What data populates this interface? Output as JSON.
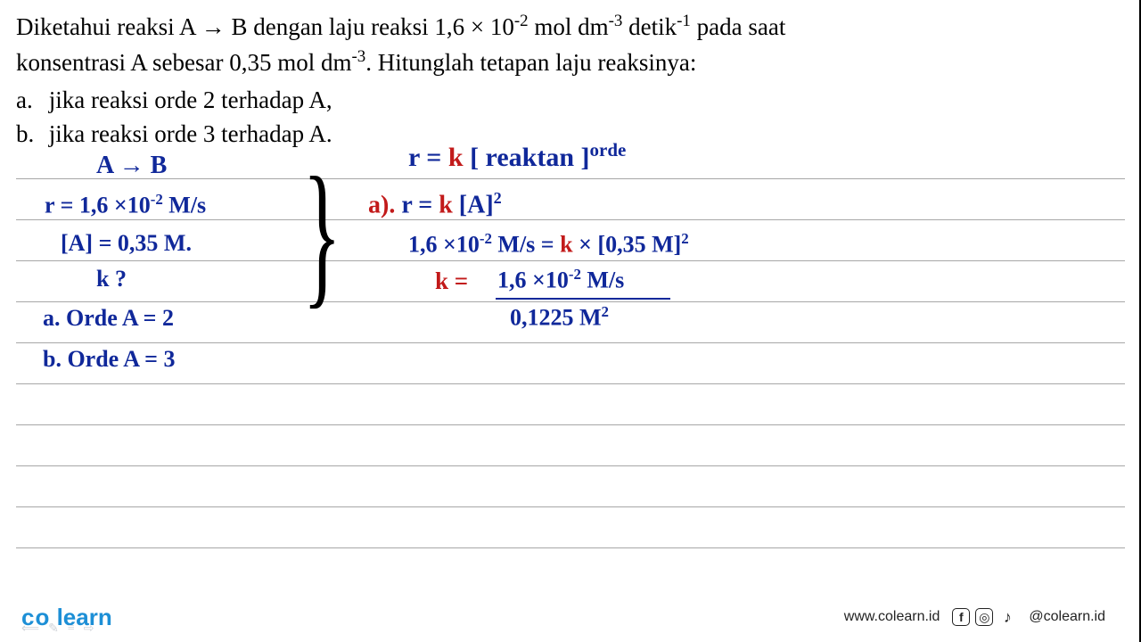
{
  "problem": {
    "line1_pre": "Diketahui reaksi A → B dengan laju reaksi 1,6 × 10",
    "line1_exp1": "-2",
    "line1_mid1": " mol dm",
    "line1_exp2": "-3",
    "line1_mid2": " detik",
    "line1_exp3": "-1",
    "line1_post": " pada saat",
    "line2_pre": "konsentrasi A sebesar 0,35 mol dm",
    "line2_exp": "-3",
    "line2_post": ". Hitunglah tetapan laju reaksinya:",
    "item_a_label": "a.",
    "item_a_text": "jika reaksi orde 2 terhadap A,",
    "item_b_label": "b.",
    "item_b_text": "jika reaksi orde 3 terhadap A."
  },
  "handwriting": {
    "eq_title": "A  →  B",
    "rate_pre": "r =  1,6 ×10",
    "rate_exp": "-2",
    "rate_unit": "  M/s",
    "conc": "[A] = 0,35 M.",
    "k_q": "k ?",
    "ordeA": "a. Orde A = 2",
    "ordeB": "b. Orde A = 3",
    "rate_law_pre": "r = ",
    "rate_law_k": "k",
    "rate_law_post": " [ reaktan ]",
    "rate_law_exp": "orde",
    "part_a_label": "a). ",
    "part_a_eq": "r = ",
    "part_a_k": "k",
    "part_a_after": " [A]",
    "part_a_sq": "2",
    "eq2_lhs_pre": "1,6 ×10",
    "eq2_lhs_exp": "-2",
    "eq2_lhs_unit": " M/s",
    "eq2_eq": " = ",
    "eq2_k": "k",
    "eq2_rhs": "  ×  [0,35 M]",
    "eq2_sq": "2",
    "k_solve_pre": "k = ",
    "k_num_pre": "1,6 ×10",
    "k_num_exp": "-2",
    "k_num_unit": " M/s",
    "k_denom": "0,1225  M",
    "k_denom_sq": "2"
  },
  "footer": {
    "logo_co": "co",
    "logo_learn": " learn",
    "url": "www.colearn.id",
    "handle": "@colearn.id"
  },
  "style": {
    "ruled_gap": 46,
    "ruled_start": 24,
    "ruled_count": 10,
    "colors": {
      "blue": "#10289a",
      "red": "#c21a1a",
      "black": "#000000",
      "ruled": "#a7a7a7",
      "logo": "#1d8fd6"
    }
  }
}
